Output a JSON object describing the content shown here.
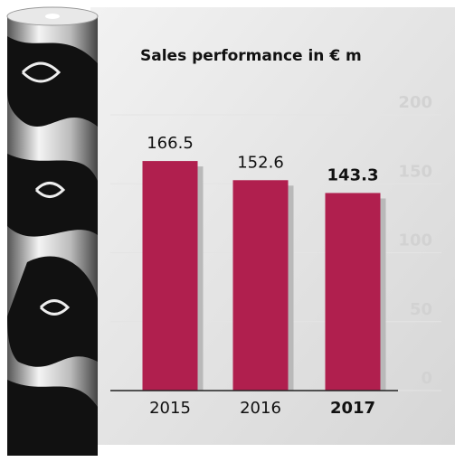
{
  "chart_data": {
    "type": "bar",
    "title": "Sales performance in € m",
    "categories": [
      "2015",
      "2016",
      "2017"
    ],
    "values": [
      166.5,
      152.6,
      143.3
    ],
    "color": "#b01f4e",
    "ylim": [
      0,
      200
    ],
    "yticks": [
      0,
      50,
      100,
      150,
      200
    ],
    "grid": true
  }
}
